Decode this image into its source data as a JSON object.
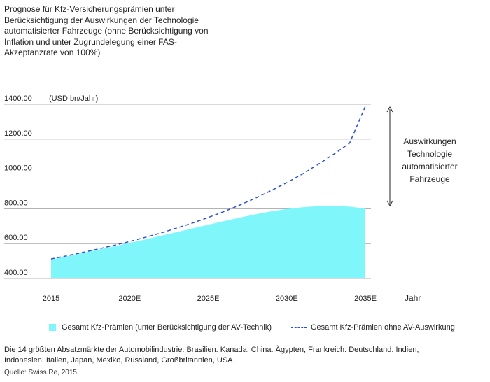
{
  "title": "Prognose für Kfz-Versicherungsprämien unter Berücksichtigung der Auswirkungen der Technologie automatisierter Fahrzeuge (ohne Berücksichtigung von Inflation und unter Zugrundelegung einer FAS-Akzeptanzrate von 100%)",
  "chart_data": {
    "type": "area",
    "title": "Prognose für Kfz-Versicherungsprämien unter Berücksichtigung der Auswirkungen der Technologie automatisierter Fahrzeuge (ohne Berücksichtigung von Inflation und unter Zugrundelegung einer FAS-Akzeptanzrate von 100%)",
    "unit_label": "(USD bn/Jahr)",
    "xlabel": "Jahr",
    "ylabel": "",
    "x_ticks": [
      "2015",
      "2020E",
      "2025E",
      "2030E",
      "2035E"
    ],
    "x_range": [
      2015,
      2035
    ],
    "y_ticks": [
      "400.00",
      "600.00",
      "800.00",
      "1000.00",
      "1200.00",
      "1400.00"
    ],
    "ylim": [
      400,
      1400
    ],
    "grid": true,
    "legend_position": "bottom",
    "series": [
      {
        "name": "Gesamt Kfz-Prämien (unter Berücksichtigung der AV-Technik)",
        "kind": "area",
        "color": "#7ef6fa",
        "x": [
          2015,
          2016,
          2017,
          2018,
          2019,
          2020,
          2021,
          2022,
          2023,
          2024,
          2025,
          2026,
          2027,
          2028,
          2029,
          2030,
          2031,
          2032,
          2033,
          2034,
          2035
        ],
        "values": [
          508,
          527,
          546,
          565,
          584,
          604,
          624,
          645,
          666,
          687,
          708,
          729,
          749,
          768,
          785,
          799,
          809,
          815,
          816,
          812,
          802
        ]
      },
      {
        "name": "Gesamt Kfz-Prämien ohne AV-Auswirkung",
        "kind": "dashed-line",
        "color": "#2b4fd8",
        "x": [
          2015,
          2016,
          2017,
          2018,
          2019,
          2020,
          2021,
          2022,
          2023,
          2024,
          2025,
          2026,
          2027,
          2028,
          2029,
          2030,
          2031,
          2032,
          2033,
          2034,
          2035
        ],
        "values": [
          512,
          530,
          549,
          569,
          590,
          612,
          636,
          661,
          689,
          718,
          750,
          784,
          821,
          861,
          904,
          950,
          1000,
          1055,
          1114,
          1177,
          1388
        ]
      }
    ],
    "annotation": "Auswirkungen Technologie automatisierter Fahrzeuge"
  },
  "annotation_lines": [
    "Auswirkungen",
    "Technologie",
    "automatisierter",
    "Fahrzeuge"
  ],
  "legend": {
    "area_label": "Gesamt Kfz-Prämien (unter Berücksichtigung der AV-Technik)",
    "line_label": "Gesamt Kfz-Prämien ohne AV-Auswirkung"
  },
  "footnote": "Die 14 größten Absatzmärkte der Automobilindustrie: Brasilien. Kanada. China. Ägypten, Frankreich. Deutschland. Indien, Indonesien, Italien, Japan, Mexiko, Russland, Großbritannien, USA.",
  "source": "Quelle: Swiss Re, 2015"
}
